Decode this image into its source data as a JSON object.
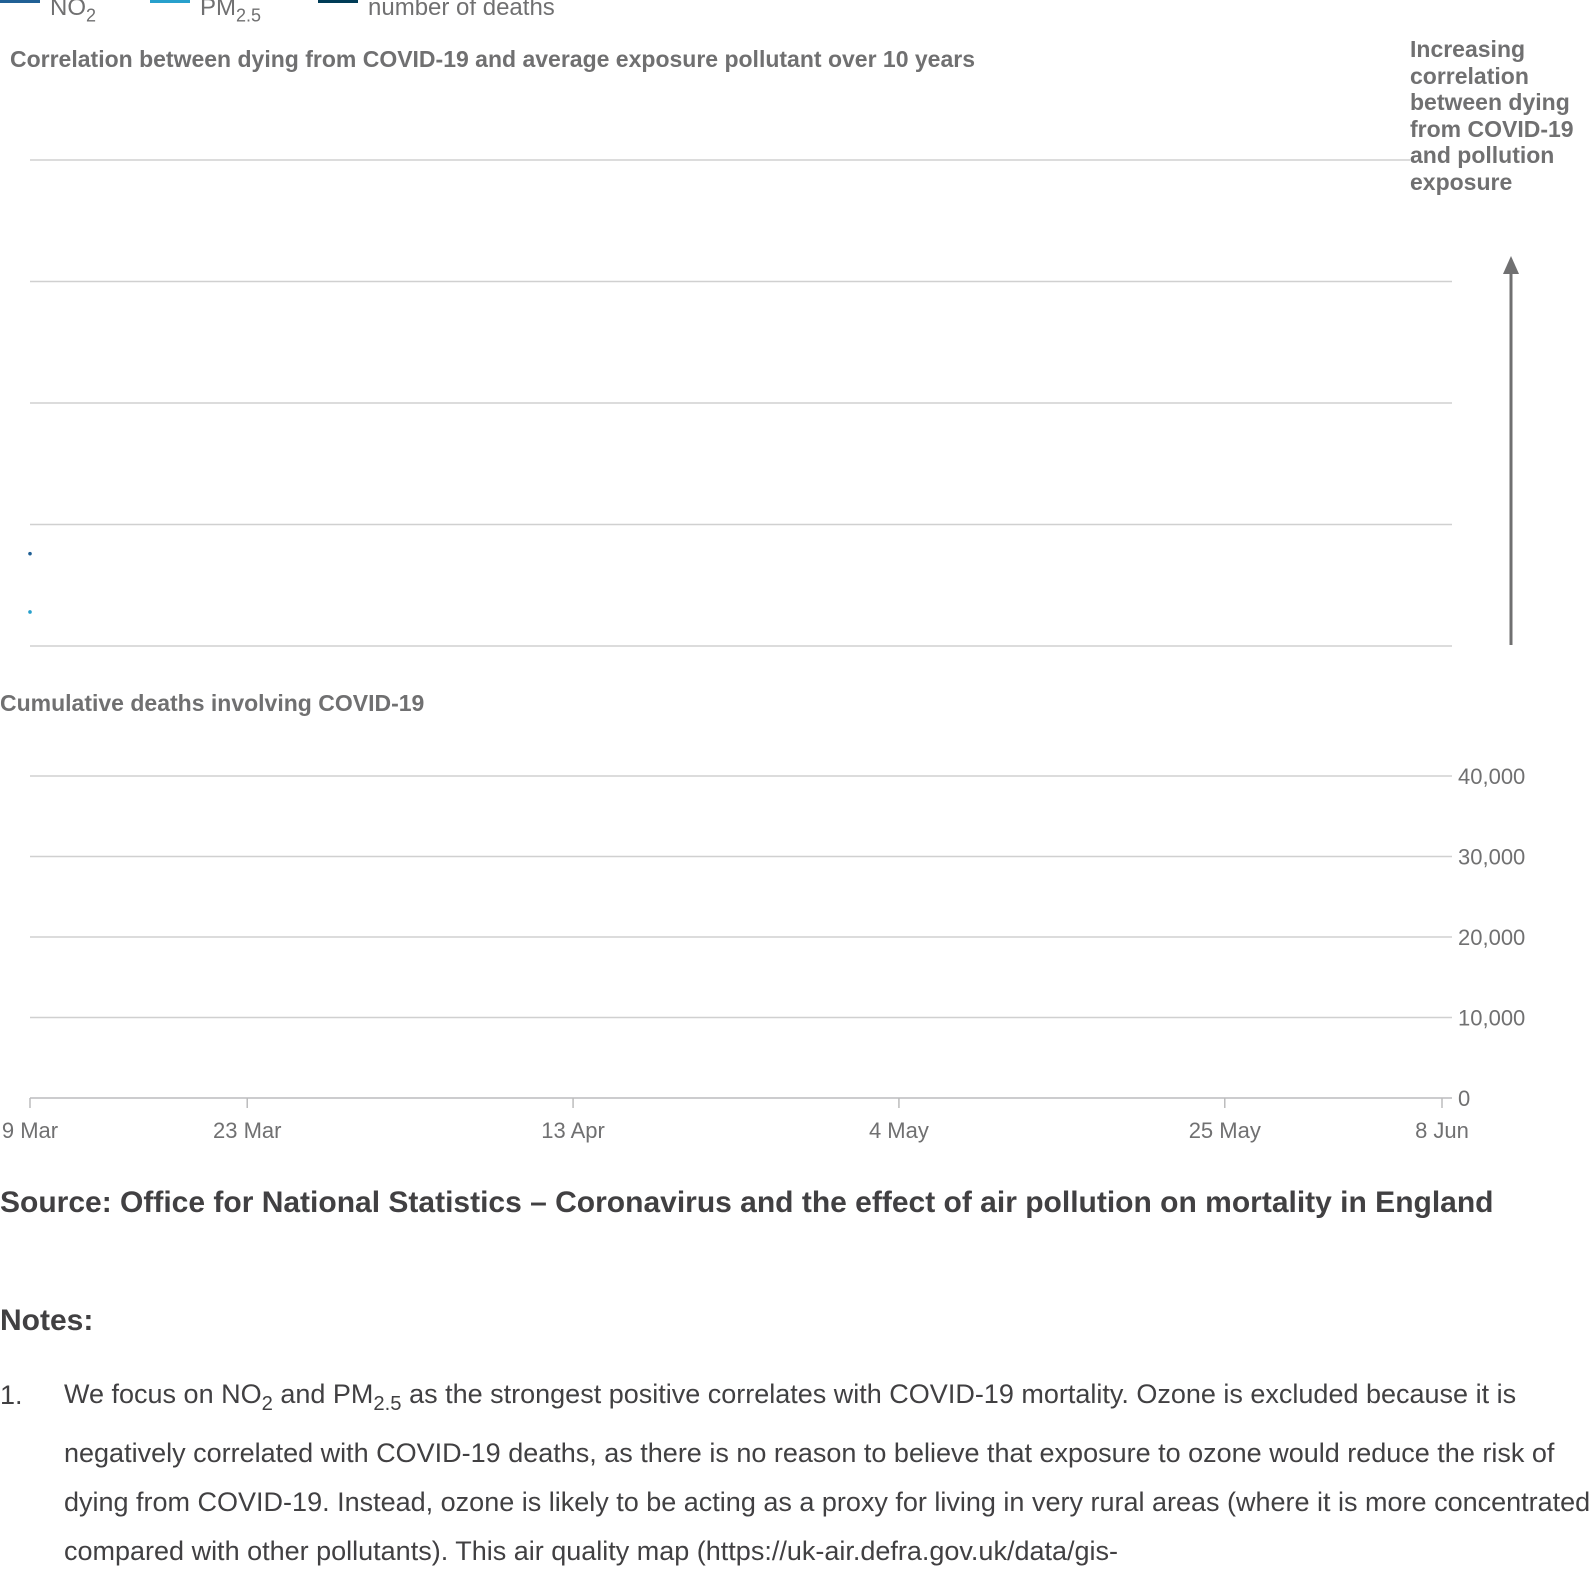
{
  "legend": [
    {
      "label": "NO",
      "sub": "2",
      "color": "#206095"
    },
    {
      "label": "PM",
      "sub": "2.5",
      "color": "#27a0cc"
    },
    {
      "label": "number of deaths",
      "sub": "",
      "color": "#003c57"
    }
  ],
  "top_chart": {
    "title": "Correlation between dying from COVID-19 and average exposure pollutant over 10 years",
    "annotation": "Increasing correlation between dying from COVID-19 and pollution exposure"
  },
  "bottom_chart": {
    "title": "Cumulative deaths involving COVID-19"
  },
  "chart_data": [
    {
      "type": "line",
      "title": "Correlation between dying from COVID-19 and average exposure pollutant over 10 years",
      "x": [
        "9 Mar"
      ],
      "series": [
        {
          "name": "NO2",
          "values": [
            0.38
          ],
          "color": "#206095"
        },
        {
          "name": "PM2.5",
          "values": [
            0.14
          ],
          "color": "#27a0cc"
        }
      ],
      "ylim": [
        0,
        2
      ],
      "grid": true
    },
    {
      "type": "line",
      "title": "Cumulative deaths involving COVID-19",
      "x_ticks": [
        "9 Mar",
        "23 Mar",
        "13 Apr",
        "4 May",
        "25 May",
        "8 Jun"
      ],
      "x_tick_days": [
        0,
        14,
        35,
        56,
        77,
        91
      ],
      "y_ticks": [
        "40,000",
        "30,000",
        "20,000",
        "10,000",
        "0"
      ],
      "y_tick_values": [
        40000,
        30000,
        20000,
        10000,
        0
      ],
      "ylim": [
        0,
        40000
      ],
      "series": [
        {
          "name": "number of deaths",
          "values": [],
          "color": "#003c57"
        }
      ],
      "grid": true
    }
  ],
  "source": "Source: Office for National Statistics – Coronavirus and the effect of air pollution on mortality in England",
  "notes_heading": "Notes:",
  "notes": [
    {
      "number": "1.",
      "p1": "We focus on NO",
      "s1": "2",
      "p2": " and PM",
      "s2": "2.5",
      "p3": " as the strongest positive correlates with COVID-19 mortality. Ozone is excluded because it is negatively correlated with COVID-19 deaths, as there is no reason to believe that exposure to ozone would reduce the risk of dying from COVID-19. Instead, ozone is likely to be acting as a proxy for living in very rural areas (where it is more concentrated compared with other pollutants). This air quality map (https://uk-air.defra.gov.uk/data/gis-"
    }
  ]
}
